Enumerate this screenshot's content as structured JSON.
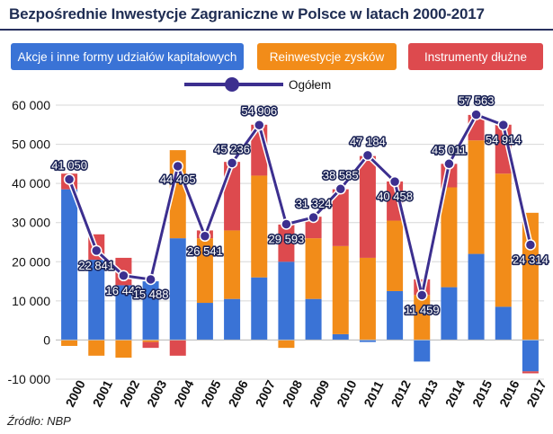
{
  "title": "Bezpośrednie Inwestycje Zagraniczne w Polsce w latach 2000-2017",
  "legend": {
    "equity": "Akcje i inne formy udziałów kapitałowych",
    "reinvest": "Reinwestycje zysków",
    "debt": "Instrumenty dłużne",
    "total": "Ogółem"
  },
  "source": "Źródło:  NBP",
  "colors": {
    "equity": "#3a73d6",
    "reinvest": "#f28c19",
    "debt": "#dd4a4e",
    "total": "#3c2f8f"
  },
  "chart_data": {
    "type": "bar",
    "stacked": true,
    "title": "Bezpośrednie Inwestycje Zagraniczne w Polsce w latach 2000-2017",
    "categories": [
      "2000",
      "2001",
      "2002",
      "2003",
      "2004",
      "2005",
      "2006",
      "2007",
      "2008",
      "2009",
      "2010",
      "2011",
      "2012",
      "2013",
      "2014",
      "2015",
      "2016",
      "2017"
    ],
    "ylim": [
      -10000,
      60000
    ],
    "yticks": [
      60000,
      50000,
      40000,
      30000,
      20000,
      10000,
      0,
      -10000
    ],
    "ytick_labels": [
      "60 000",
      "50 000",
      "40 000",
      "30 000",
      "20 000",
      "10 000",
      "0",
      "-10 000"
    ],
    "grid": true,
    "series": [
      {
        "name": "Akcje i inne formy udziałów kapitałowych",
        "values": [
          38500,
          20500,
          14000,
          15000,
          26000,
          9500,
          10500,
          16000,
          20000,
          10500,
          1500,
          -500,
          12500,
          -5500,
          13500,
          22000,
          8500,
          -8000
        ]
      },
      {
        "name": "Reinwestycje zysków",
        "values": [
          -1500,
          -4000,
          -4500,
          -500,
          22500,
          16500,
          17500,
          26000,
          -2000,
          15500,
          22500,
          21000,
          18000,
          11500,
          25500,
          29000,
          34000,
          32500
        ]
      },
      {
        "name": "Instrumenty dłużne",
        "values": [
          4000,
          6500,
          7000,
          -1500,
          -4000,
          2000,
          17500,
          13000,
          9500,
          5500,
          14500,
          26000,
          10000,
          4000,
          6000,
          6500,
          12500,
          -500
        ]
      },
      {
        "name": "Ogółem",
        "type": "line",
        "values": [
          41050,
          22841,
          16443,
          15488,
          44405,
          26541,
          45236,
          54906,
          29593,
          31324,
          38585,
          47184,
          40458,
          11459,
          45011,
          57563,
          54914,
          24314
        ],
        "labels": [
          "41 050",
          "22 841",
          "16 443",
          "15 488",
          "44 405",
          "26 541",
          "45 236",
          "54 906",
          "29 593",
          "31 324",
          "38 585",
          "47 184",
          "40 458",
          "11 459",
          "45 011",
          "57 563",
          "54 914",
          "24 314"
        ]
      }
    ]
  }
}
